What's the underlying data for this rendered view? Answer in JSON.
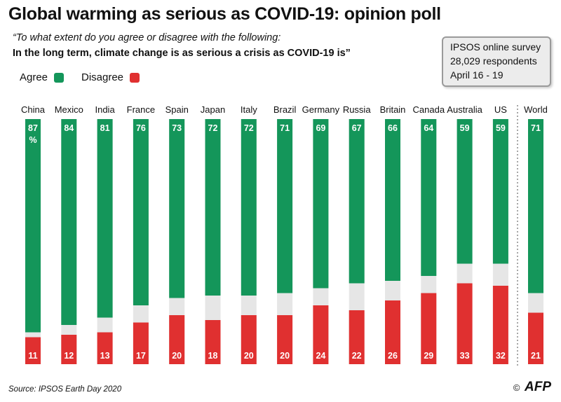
{
  "title": "Global warming as serious as COVID-19: opinion poll",
  "question_line1": "“To what extent do you agree or disagree with the following:",
  "question_line2": "In the long term, climate change is as serious a crisis as COVID-19 is”",
  "survey_box": {
    "line1": "IPSOS online survey",
    "line2": "28,029 respondents",
    "line3": "April 16 - 19"
  },
  "legend": {
    "agree": "Agree",
    "disagree": "Disagree"
  },
  "colors": {
    "agree": "#14965a",
    "disagree": "#e03030",
    "neutral": "#e6e6e6",
    "separator": "#888888"
  },
  "source": "Source: IPSOS Earth Day 2020",
  "credit": {
    "copyright": "©",
    "agency": "AFP"
  },
  "chart_data": {
    "type": "bar",
    "stacked": true,
    "orientation": "vertical",
    "categories": [
      "China",
      "Mexico",
      "India",
      "France",
      "Spain",
      "Japan",
      "Italy",
      "Brazil",
      "Germany",
      "Russia",
      "Britain",
      "Canada",
      "Australia",
      "US",
      "World"
    ],
    "series": [
      {
        "name": "Agree",
        "values": [
          87,
          84,
          81,
          76,
          73,
          72,
          72,
          71,
          69,
          67,
          66,
          64,
          59,
          59,
          71
        ]
      },
      {
        "name": "Disagree",
        "values": [
          11,
          12,
          13,
          17,
          20,
          18,
          20,
          20,
          24,
          22,
          26,
          29,
          33,
          32,
          21
        ]
      }
    ],
    "first_label_suffix": "%",
    "ylim": [
      0,
      100
    ],
    "separator_before": "World"
  }
}
